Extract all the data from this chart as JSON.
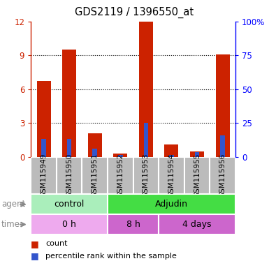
{
  "title": "GDS2119 / 1396550_at",
  "samples": [
    "GSM115949",
    "GSM115950",
    "GSM115951",
    "GSM115952",
    "GSM115953",
    "GSM115954",
    "GSM115955",
    "GSM115956"
  ],
  "count_values": [
    6.7,
    9.5,
    2.1,
    0.3,
    12.0,
    1.1,
    0.5,
    9.1
  ],
  "percentile_values": [
    13.0,
    13.0,
    6.0,
    1.5,
    25.0,
    1.5,
    3.5,
    16.0
  ],
  "ylim_left": [
    0,
    12
  ],
  "ylim_right": [
    0,
    100
  ],
  "yticks_left": [
    0,
    3,
    6,
    9,
    12
  ],
  "yticks_right": [
    0,
    25,
    50,
    75,
    100
  ],
  "count_color": "#cc2200",
  "percentile_color": "#3355cc",
  "agent_groups": [
    {
      "label": "control",
      "start": 0,
      "end": 3,
      "color": "#aaeebb"
    },
    {
      "label": "Adjudin",
      "start": 3,
      "end": 8,
      "color": "#44dd44"
    }
  ],
  "time_groups": [
    {
      "label": "0 h",
      "start": 0,
      "end": 3,
      "color": "#eeaaee"
    },
    {
      "label": "8 h",
      "start": 3,
      "end": 5,
      "color": "#cc66cc"
    },
    {
      "label": "4 days",
      "start": 5,
      "end": 8,
      "color": "#cc66cc"
    }
  ],
  "sample_box_color": "#bbbbbb",
  "legend_count_label": "count",
  "legend_percentile_label": "percentile rank within the sample",
  "agent_label": "agent",
  "time_label": "time",
  "grid_lines": [
    3,
    6,
    9
  ],
  "fig_width": 3.85,
  "fig_height": 3.84,
  "dpi": 100
}
